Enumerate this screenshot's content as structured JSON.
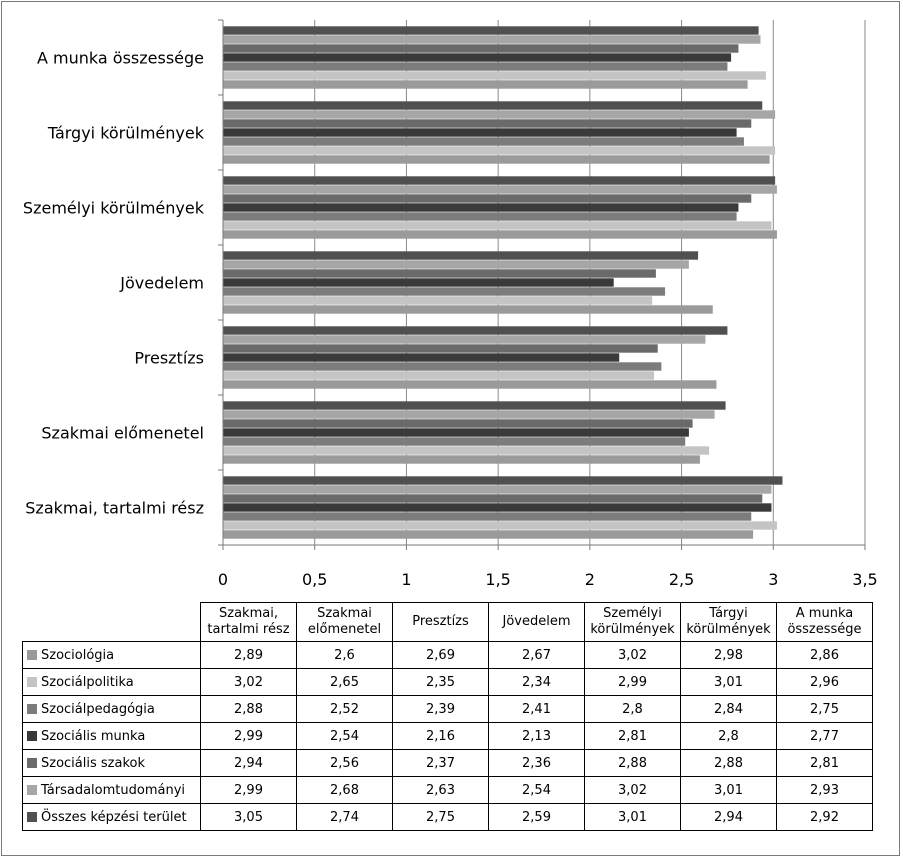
{
  "chart_data": {
    "type": "bar",
    "orientation": "horizontal",
    "categories": [
      "Szakmai, tartalmi rész",
      "Szakmai előmenetel",
      "Presztízs",
      "Jövedelem",
      "Személyi körülmények",
      "Tárgyi körülmények",
      "A munka összessége"
    ],
    "table_headers": [
      "Szakmai, tartalmi rész",
      "Szakmai előmenetel",
      "Presztízs",
      "Jövedelem",
      "Személyi körülmények",
      "Tárgyi körülmények",
      "A munka összessége"
    ],
    "series": [
      {
        "name": "Szociológia",
        "color": "#9a9a9a",
        "values": [
          2.89,
          2.6,
          2.69,
          2.67,
          3.02,
          2.98,
          2.86
        ],
        "labels": [
          "2,89",
          "2,6",
          "2,69",
          "2,67",
          "3,02",
          "2,98",
          "2,86"
        ]
      },
      {
        "name": "Szociálpolitika",
        "color": "#c4c4c4",
        "values": [
          3.02,
          2.65,
          2.35,
          2.34,
          2.99,
          3.01,
          2.96
        ],
        "labels": [
          "3,02",
          "2,65",
          "2,35",
          "2,34",
          "2,99",
          "3,01",
          "2,96"
        ]
      },
      {
        "name": "Szociálpedagógia",
        "color": "#7c7c7c",
        "values": [
          2.88,
          2.52,
          2.39,
          2.41,
          2.8,
          2.84,
          2.75
        ],
        "labels": [
          "2,88",
          "2,52",
          "2,39",
          "2,41",
          "2,8",
          "2,84",
          "2,75"
        ]
      },
      {
        "name": "Szociális munka",
        "color": "#3a3a3a",
        "values": [
          2.99,
          2.54,
          2.16,
          2.13,
          2.81,
          2.8,
          2.77
        ],
        "labels": [
          "2,99",
          "2,54",
          "2,16",
          "2,13",
          "2,81",
          "2,8",
          "2,77"
        ]
      },
      {
        "name": "Szociális szakok",
        "color": "#6a6a6a",
        "values": [
          2.94,
          2.56,
          2.37,
          2.36,
          2.88,
          2.88,
          2.81
        ],
        "labels": [
          "2,94",
          "2,56",
          "2,37",
          "2,36",
          "2,88",
          "2,88",
          "2,81"
        ]
      },
      {
        "name": "Társadalomtudományi",
        "color": "#a6a6a6",
        "values": [
          2.99,
          2.68,
          2.63,
          2.54,
          3.02,
          3.01,
          2.93
        ],
        "labels": [
          "2,99",
          "2,68",
          "2,63",
          "2,54",
          "3,02",
          "3,01",
          "2,93"
        ]
      },
      {
        "name": "Összes képzési terület",
        "color": "#505050",
        "values": [
          3.05,
          2.74,
          2.75,
          2.59,
          3.01,
          2.94,
          2.92
        ],
        "labels": [
          "3,05",
          "2,74",
          "2,75",
          "2,59",
          "3,01",
          "2,94",
          "2,92"
        ]
      }
    ],
    "xlim": [
      0,
      3.5
    ],
    "ticks": [
      0,
      0.5,
      1,
      1.5,
      2,
      2.5,
      3,
      3.5
    ],
    "tick_labels": [
      "0",
      "0,5",
      "1",
      "1,5",
      "2",
      "2,5",
      "3",
      "3,5"
    ],
    "grid": true,
    "legend": "data-table-below"
  }
}
